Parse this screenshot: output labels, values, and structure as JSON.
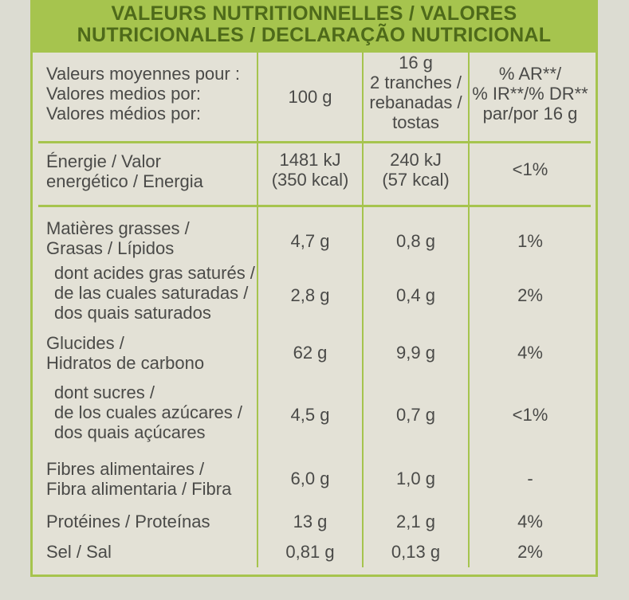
{
  "header": {
    "line1": "VALEURS NUTRITIONNELLES / VALORES",
    "line2": "NUTRICIONALES / DECLARAÇÃO NUTRICIONAL"
  },
  "columns": {
    "label": [
      "Valeurs moyennes pour :",
      "Valores medios por:",
      "Valores médios por:"
    ],
    "per100": "100 g",
    "portion": [
      "16 g",
      "2 tranches /",
      "rebanadas /",
      "tostas"
    ],
    "ri": [
      "% AR**/",
      "% IR**/% DR**",
      "par/por 16 g"
    ]
  },
  "rows": [
    {
      "label": [
        "Énergie / Valor",
        "energético / Energia"
      ],
      "v100": [
        "1481 kJ",
        "(350 kcal)"
      ],
      "v16": [
        "240 kJ",
        "(57 kcal)"
      ],
      "ri": "<1%"
    },
    {
      "label": [
        "Matières grasses /",
        "Grasas / Lípidos"
      ],
      "v100": "4,7 g",
      "v16": "0,8 g",
      "ri": "1%"
    },
    {
      "label": [
        "dont acides gras saturés /",
        "de las cuales saturadas /",
        "dos quais saturados"
      ],
      "v100": "2,8 g",
      "v16": "0,4 g",
      "ri": "2%"
    },
    {
      "label": [
        "Glucides /",
        "Hidratos de carbono"
      ],
      "v100": "62 g",
      "v16": "9,9 g",
      "ri": "4%"
    },
    {
      "label": [
        "dont sucres /",
        "de los cuales azúcares /",
        "dos quais açúcares"
      ],
      "v100": "4,5 g",
      "v16": "0,7 g",
      "ri": "<1%"
    },
    {
      "label": [
        "Fibres alimentaires /",
        "Fibra alimentaria / Fibra"
      ],
      "v100": "6,0 g",
      "v16": "1,0 g",
      "ri": "-"
    },
    {
      "label": [
        "Protéines / Proteínas"
      ],
      "v100": "13 g",
      "v16": "2,1 g",
      "ri": "4%"
    },
    {
      "label": [
        "Sel / Sal"
      ],
      "v100": "0,81 g",
      "v16": "0,13 g",
      "ri": "2%"
    }
  ]
}
